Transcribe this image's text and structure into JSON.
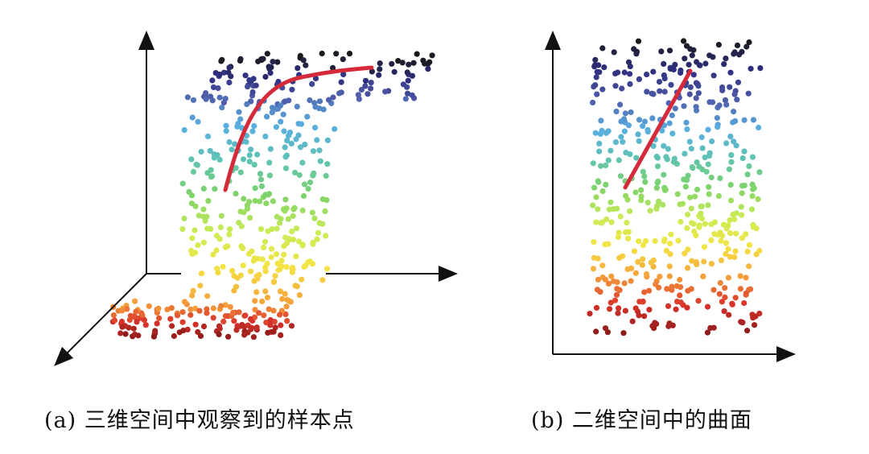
{
  "panel_a": {
    "caption": "(a) 三维空间中观察到的样本点"
  },
  "panel_b": {
    "caption": "(b) 二维空间中的曲面"
  },
  "colors": {
    "axis": "#111111",
    "curve": "#d42a3a",
    "colormap": [
      "#1a1a1a",
      "#2e2f7e",
      "#4e5aa8",
      "#5aaee0",
      "#5fc3b4",
      "#7fd36a",
      "#c9ec57",
      "#f4e545",
      "#f6a33c",
      "#d9332b",
      "#8b1a1a"
    ]
  }
}
